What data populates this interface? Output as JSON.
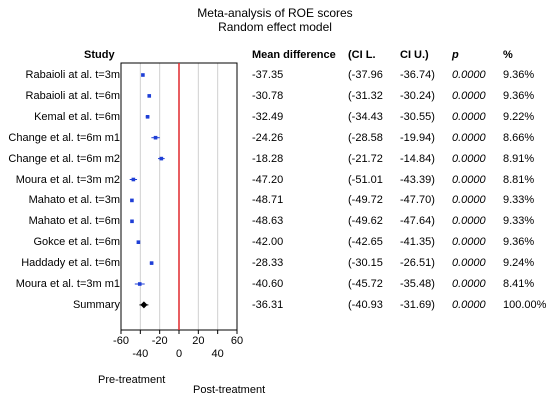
{
  "chart_data": {
    "type": "forest",
    "title": "Meta-analysis of ROE scores",
    "subtitle": "Random effect model",
    "columns": [
      "Study",
      "Mean difference",
      "(CI L.",
      "CI U.)",
      "p",
      "%"
    ],
    "rows": [
      {
        "study": "Rabaioli at al. t=3m",
        "md": "-37.35",
        "lo": "(-37.96",
        "hi": "-36.74)",
        "p": "0.0000",
        "w": "9.36%"
      },
      {
        "study": "Rabaioli at al. t=6m",
        "md": "-30.78",
        "lo": "(-31.32",
        "hi": "-30.24)",
        "p": "0.0000",
        "w": "9.36%"
      },
      {
        "study": "Kemal et al. t=6m",
        "md": "-32.49",
        "lo": "(-34.43",
        "hi": "-30.55)",
        "p": "0.0000",
        "w": "9.22%"
      },
      {
        "study": "Change et al. t=6m m1",
        "md": "-24.26",
        "lo": "(-28.58",
        "hi": "-19.94)",
        "p": "0.0000",
        "w": "8.66%"
      },
      {
        "study": "Change et al. t=6m m2",
        "md": "-18.28",
        "lo": "(-21.72",
        "hi": "-14.84)",
        "p": "0.0000",
        "w": "8.91%"
      },
      {
        "study": "Moura et al. t=3m m2",
        "md": "-47.20",
        "lo": "(-51.01",
        "hi": "-43.39)",
        "p": "0.0000",
        "w": "8.81%"
      },
      {
        "study": "Mahato et al.  t=3m",
        "md": "-48.71",
        "lo": "(-49.72",
        "hi": "-47.70)",
        "p": "0.0000",
        "w": "9.33%"
      },
      {
        "study": "Mahato et al. t=6m",
        "md": "-48.63",
        "lo": "(-49.62",
        "hi": "-47.64)",
        "p": "0.0000",
        "w": "9.33%"
      },
      {
        "study": "Gokce et al. t=6m",
        "md": "-42.00",
        "lo": "(-42.65",
        "hi": "-41.35)",
        "p": "0.0000",
        "w": "9.36%"
      },
      {
        "study": "Haddady et al. t=6m",
        "md": "-28.33",
        "lo": "(-30.15",
        "hi": "-26.51)",
        "p": "0.0000",
        "w": "9.24%"
      },
      {
        "study": "Moura et al. t=3m m1",
        "md": "-40.60",
        "lo": "(-45.72",
        "hi": "-35.48)",
        "p": "0.0000",
        "w": "8.41%"
      },
      {
        "study": "Summary",
        "md": "-36.31",
        "lo": "(-40.93",
        "hi": "-31.69)",
        "p": "0.0000",
        "w": "100.00%",
        "summary": true
      }
    ],
    "xlim": [
      -60,
      60
    ],
    "x_ticks_top": [
      "-60",
      "-20",
      "20",
      "60"
    ],
    "x_ticks_bottom": [
      "-40",
      "0",
      "40"
    ],
    "xlabel_left": "Pre-treatment",
    "xlabel_right": "Post-treatment",
    "null_line": 0,
    "grid": true,
    "colors": {
      "study_marker": "#1f3fd6",
      "summary_marker": "#000000",
      "null_line": "#e0282d",
      "grid": "#d0d0d0"
    }
  }
}
